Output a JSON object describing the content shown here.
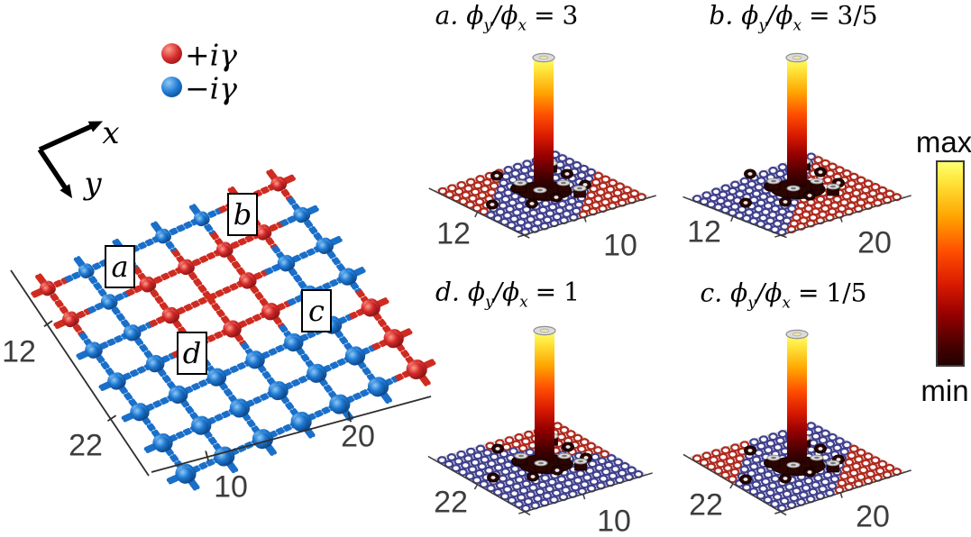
{
  "figure": {
    "description_tag": "gain-loss lattice with four localized-mode bar plots"
  },
  "math": {
    "phi": "ϕ",
    "sub_y": "y",
    "sub_x": "x",
    "slash": "/",
    "equals": "="
  },
  "lattice": {
    "legend": [
      {
        "label": "+iγ",
        "color_key": "gain_red"
      },
      {
        "label": "−iγ",
        "color_key": "loss_blue"
      }
    ],
    "axes": {
      "x_label": "x",
      "y_label": "y"
    },
    "axis_ticks": {
      "y_axis": [
        "12",
        "22"
      ],
      "x_axis": [
        "10",
        "20"
      ]
    },
    "site_labels": [
      {
        "text": "a"
      },
      {
        "text": "b"
      },
      {
        "text": "c"
      },
      {
        "text": "d"
      }
    ],
    "grid": [
      "RBBBBRR",
      "RBRRRRB",
      "BBRHRBB",
      "BBRRRBB",
      "BBBBBBR",
      "BBBBBBR",
      "BBBBBBR"
    ]
  },
  "panels": [
    {
      "id": "a",
      "title_prefix": "a.",
      "ratio_value": "3",
      "title_text": "a. ϕ_y/ϕ_x = 3",
      "left_tick": "12",
      "right_tick": "10",
      "pattern": {
        "metric": "sum",
        "red_lo": 0.55,
        "red_hi": 1.4
      }
    },
    {
      "id": "b",
      "title_prefix": "b.",
      "ratio_value": "3/5",
      "title_text": "b. ϕ_y/ϕ_x = 3/5",
      "left_tick": "12",
      "right_tick": "20",
      "pattern": {
        "metric": "sum",
        "red_lo": 0.0,
        "red_hi": 1.0
      }
    },
    {
      "id": "d",
      "title_prefix": "d.",
      "ratio_value": "1",
      "title_text": "d. ϕ_y/ϕ_x = 1",
      "left_tick": "22",
      "right_tick": "10",
      "pattern": {
        "metric": "diff",
        "red_lo": -1.0,
        "red_hi": 1.35
      }
    },
    {
      "id": "c",
      "title_prefix": "c.",
      "ratio_value": "1/5",
      "title_text": "c. ϕ_y/ϕ_x = 1/5",
      "left_tick": "22",
      "right_tick": "20",
      "pattern": {
        "metric": "sum",
        "red_lo": 0.5,
        "red_hi": 1.45
      }
    }
  ],
  "colorbar": {
    "max_label": "max",
    "min_label": "min"
  },
  "colors": {
    "gain_red": "#d42a2a",
    "gain_red_hl": "#ff9d8c",
    "gain_red_dark": "#7e1111",
    "gain_bond": "#cf2b21",
    "loss_blue": "#1e78d2",
    "loss_blue_hl": "#8ec9f5",
    "loss_blue_dark": "#0b3c78",
    "loss_bond": "#1a6fc9",
    "ring_red": "#b02a1e",
    "ring_blue": "#41418f",
    "plane_fill": "#ececea",
    "axis_color": "#2e2e2e",
    "cap_fill": "#dcdcdc",
    "cap_stroke": "#8f8f8f",
    "cap_hole": "#ece5ae",
    "dark_bar": "#2a0502",
    "dark_edge": "#140101",
    "hot_stops": [
      [
        0,
        "#ffff70"
      ],
      [
        0.09,
        "#ffe63c"
      ],
      [
        0.27,
        "#ffa400"
      ],
      [
        0.44,
        "#ff4e00"
      ],
      [
        0.6,
        "#da1b00"
      ],
      [
        0.75,
        "#970000"
      ],
      [
        0.9,
        "#4a0000"
      ],
      [
        1,
        "#230000"
      ]
    ]
  },
  "chart_data": [
    {
      "type": "scatter",
      "subtype": "3d-lattice-diagram",
      "series": [
        {
          "name": "+iγ gain sites",
          "color": "#d42a2a"
        },
        {
          "name": "−iγ loss sites",
          "color": "#1e78d2"
        }
      ],
      "domain_grid_rows": [
        "RBBBBRR",
        "RBRRRRB",
        "BBRHRBB",
        "BBRRRBB",
        "BBBBBBR",
        "BBBBBBR",
        "BBBBBBR"
      ],
      "site_labels": [
        "a",
        "b",
        "c",
        "d"
      ],
      "x_ticks": [
        "10",
        "20"
      ],
      "y_ticks": [
        "12",
        "22"
      ],
      "axis_arrows": [
        "x",
        "y"
      ]
    },
    {
      "type": "bar",
      "panel": "a",
      "title": "a. ϕ_y/ϕ_x = 3",
      "x_tick": "10",
      "y_tick": "12",
      "bars": [
        {
          "label": "mode peak at defect site",
          "value": "max"
        },
        {
          "label": "surrounding sites (≈7 small bars)",
          "value": "near min"
        }
      ],
      "colormap": "hot",
      "colorbar_range": [
        "min",
        "max"
      ]
    },
    {
      "type": "bar",
      "panel": "b",
      "title": "b. ϕ_y/ϕ_x = 3/5",
      "x_tick": "20",
      "y_tick": "12",
      "bars": [
        {
          "label": "mode peak at defect site",
          "value": "max"
        },
        {
          "label": "surrounding sites (≈7 small bars)",
          "value": "near min"
        }
      ],
      "colormap": "hot",
      "colorbar_range": [
        "min",
        "max"
      ]
    },
    {
      "type": "bar",
      "panel": "d",
      "title": "d. ϕ_y/ϕ_x = 1",
      "x_tick": "10",
      "y_tick": "22",
      "bars": [
        {
          "label": "mode peak at defect site",
          "value": "max"
        },
        {
          "label": "surrounding sites (≈7 small bars)",
          "value": "near min"
        }
      ],
      "colormap": "hot",
      "colorbar_range": [
        "min",
        "max"
      ]
    },
    {
      "type": "bar",
      "panel": "c",
      "title": "c. ϕ_y/ϕ_x = 1/5",
      "x_tick": "20",
      "y_tick": "22",
      "bars": [
        {
          "label": "mode peak at defect site",
          "value": "max"
        },
        {
          "label": "surrounding sites (≈7 small bars)",
          "value": "near min"
        }
      ],
      "colormap": "hot",
      "colorbar_range": [
        "min",
        "max"
      ]
    }
  ]
}
